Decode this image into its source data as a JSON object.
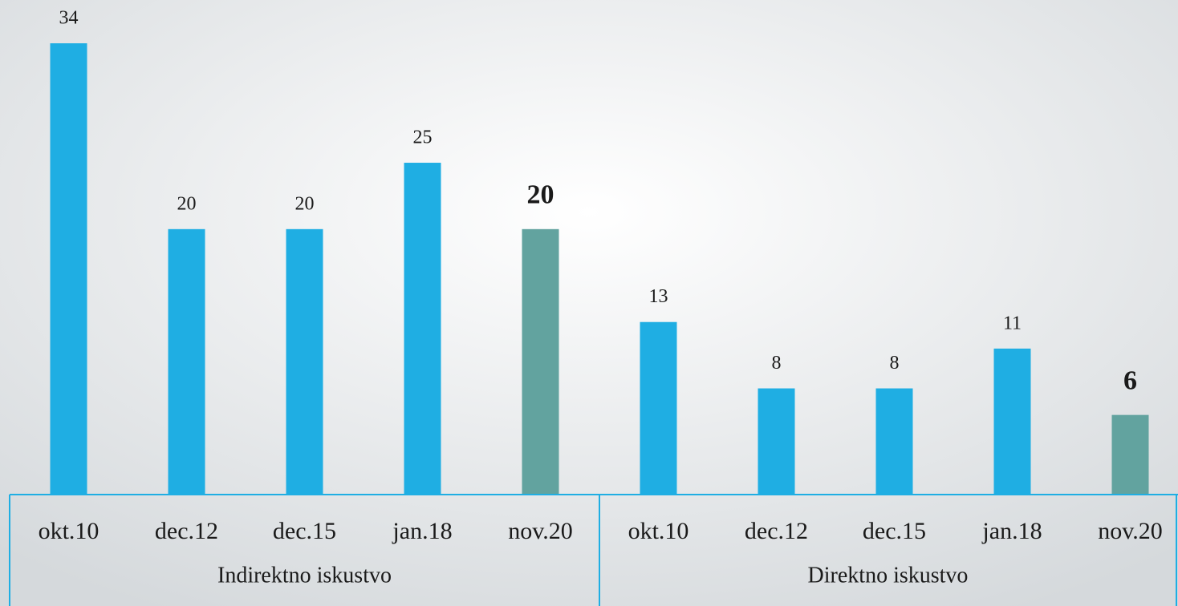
{
  "chart_data": {
    "type": "bar",
    "categories": [
      "okt.10",
      "dec.12",
      "dec.15",
      "jan.18",
      "nov.20",
      "okt.10",
      "dec.12",
      "dec.15",
      "jan.18",
      "nov.20"
    ],
    "groups": [
      "Indirektno iskustvo",
      "Direktno iskustvo"
    ],
    "values": [
      34,
      20,
      20,
      25,
      20,
      13,
      8,
      8,
      11,
      6
    ],
    "color": "#1faee3",
    "colors": [
      "#1faee3",
      "#1faee3",
      "#1faee3",
      "#1faee3",
      "#62a39f",
      "#1faee3",
      "#1faee3",
      "#1faee3",
      "#1faee3",
      "#62a39f"
    ]
  }
}
